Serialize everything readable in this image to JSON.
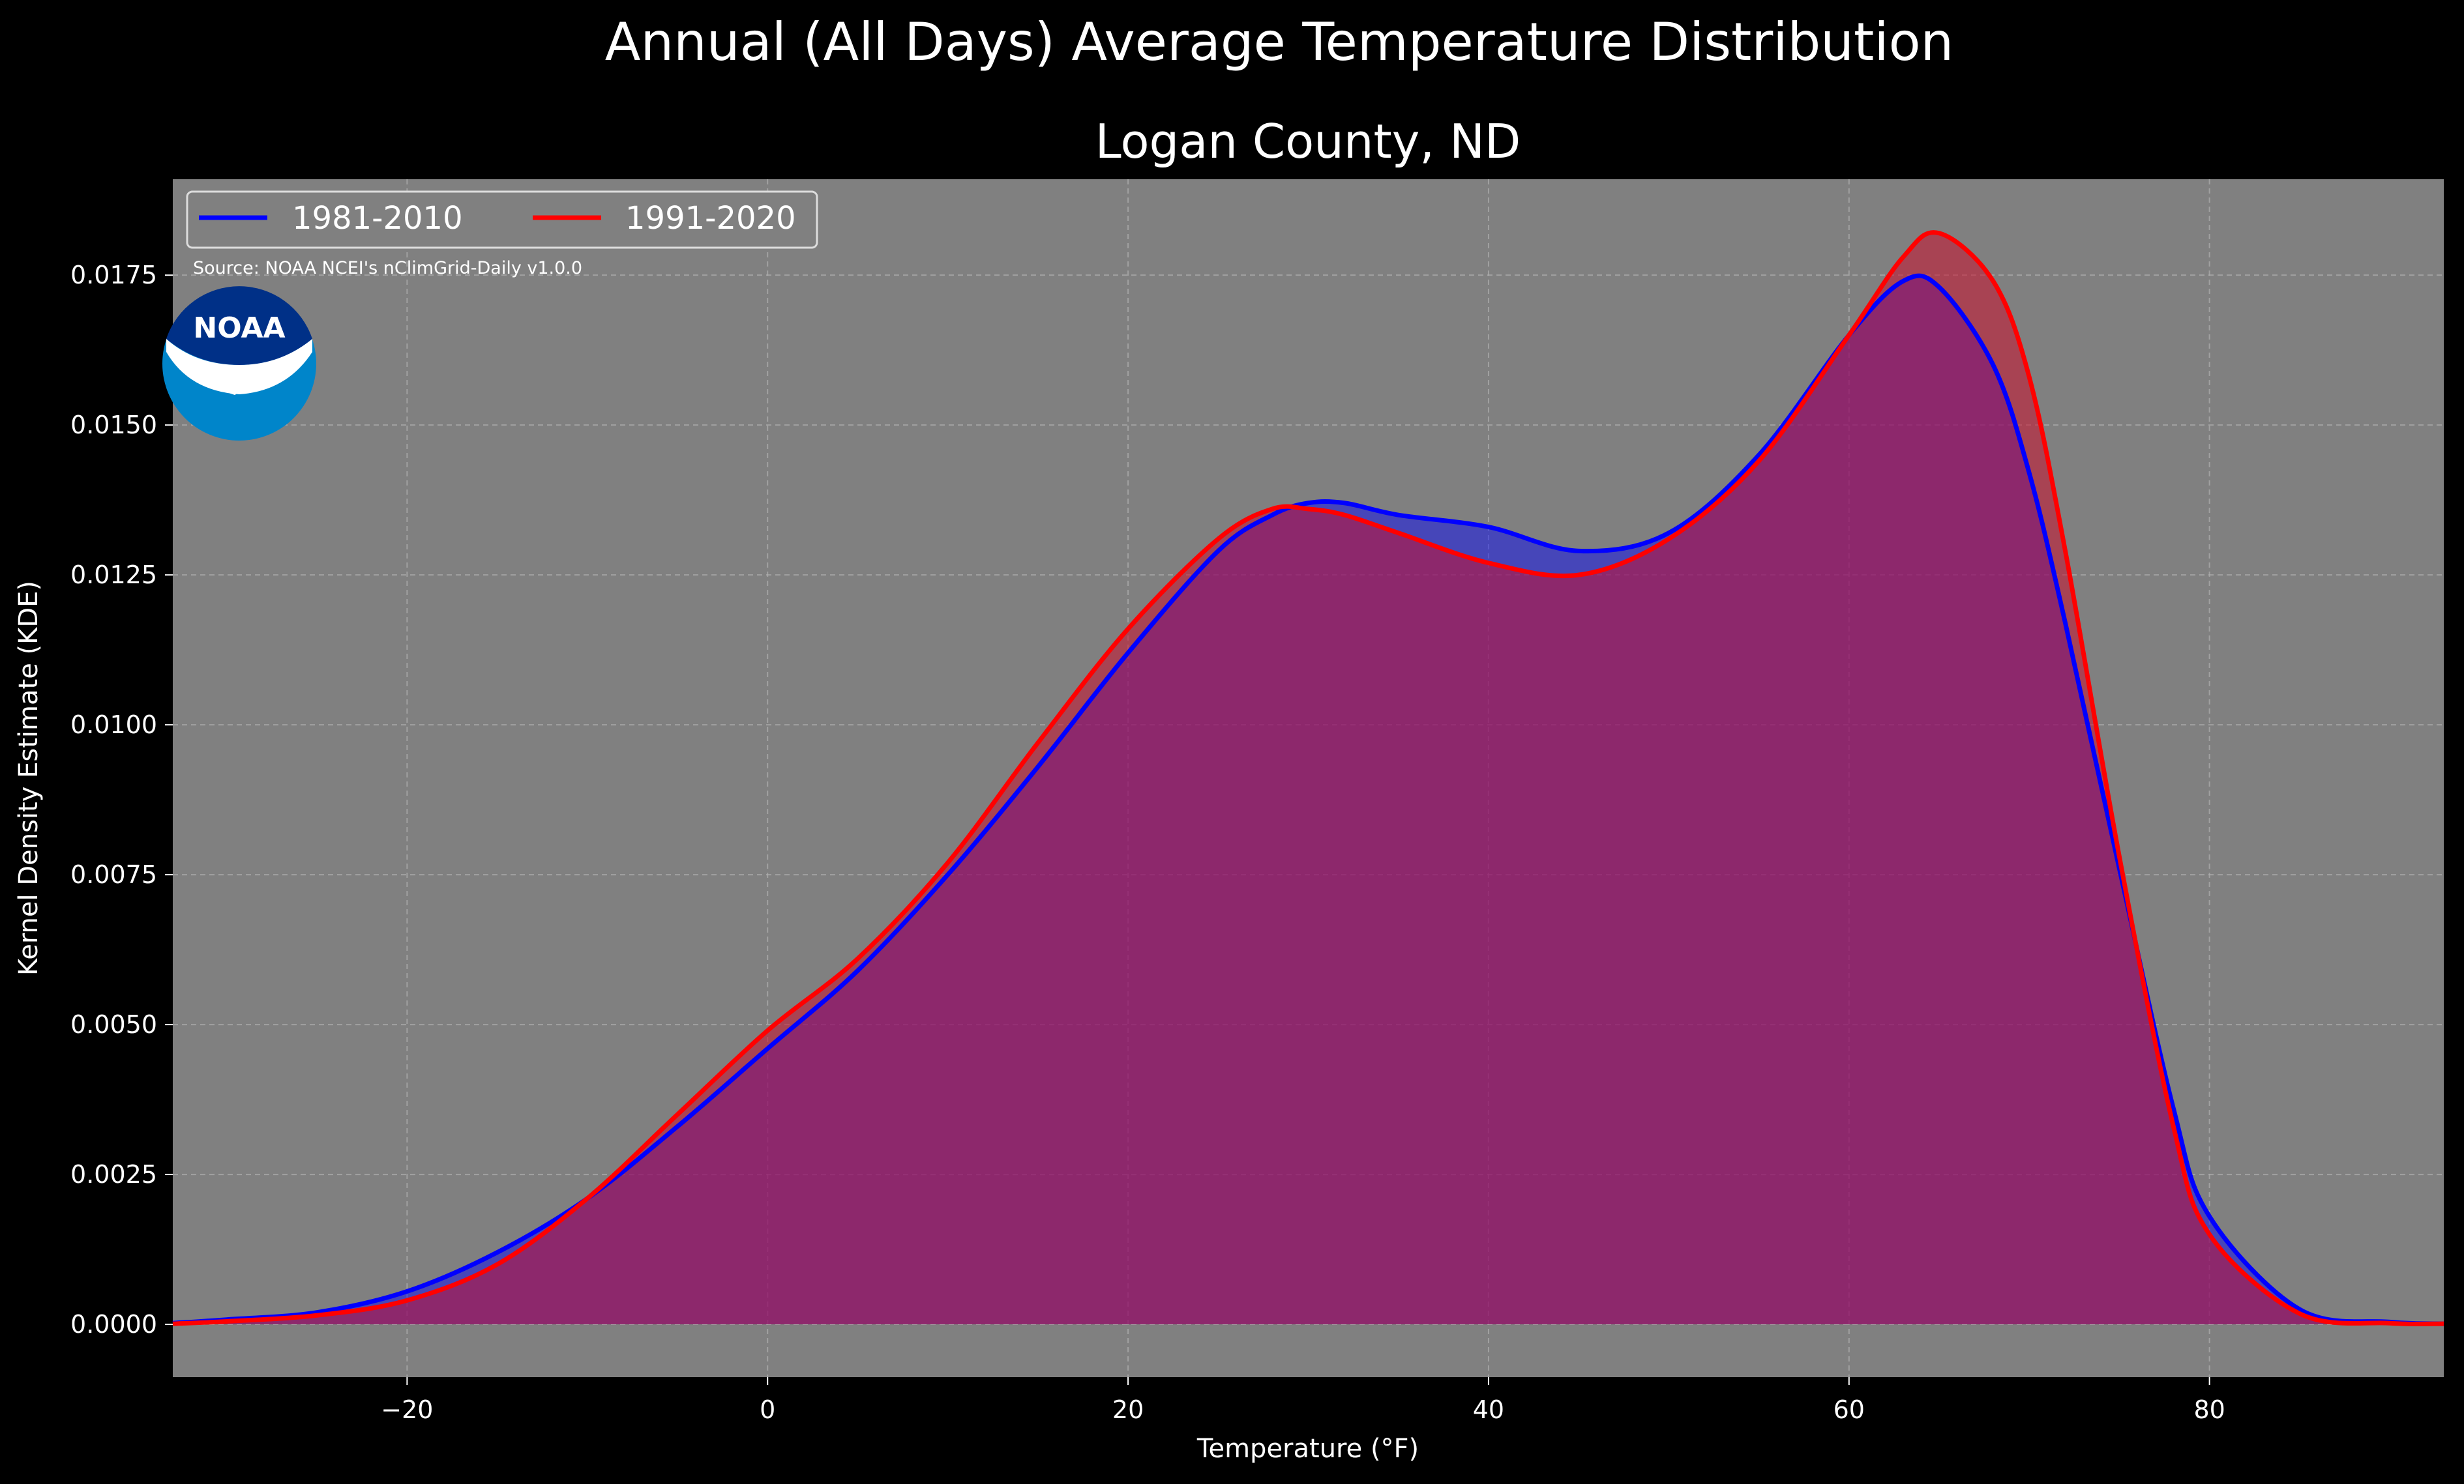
{
  "suptitle": "Annual (All Days) Average Temperature Distribution",
  "title": "Logan County, ND",
  "source_note": "Source: NOAA NCEI's nClimGrid-Daily v1.0.0",
  "logo": {
    "text": "NOAA",
    "colors": {
      "outer": "#0085CA",
      "inner": "#003087"
    }
  },
  "colors": {
    "background": "#000000",
    "plot_bg": "#808080",
    "grid": "#b0b0b0"
  },
  "chart_data": {
    "type": "area",
    "xlabel": "Temperature (°F)",
    "ylabel": "Kernel Density Estimate (KDE)",
    "xlim": [
      -33,
      93
    ],
    "ylim": [
      -0.00088,
      0.0191
    ],
    "xticks": [
      -20,
      0,
      20,
      40,
      60,
      80
    ],
    "xtick_labels": [
      "−20",
      "0",
      "20",
      "40",
      "60",
      "80"
    ],
    "yticks": [
      0,
      0.0025,
      0.005,
      0.0075,
      0.01,
      0.0125,
      0.015,
      0.0175
    ],
    "ytick_labels": [
      "0.0000",
      "0.0025",
      "0.0050",
      "0.0075",
      "0.0100",
      "0.0125",
      "0.0150",
      "0.0175"
    ],
    "grid": true,
    "legend_placement": "top-left",
    "series": [
      {
        "name": "1981-2010",
        "line_color": "#0000ff",
        "fill_color": "#0000ff",
        "fill_opacity": 0.45,
        "x": [
          -33,
          -30,
          -25,
          -20,
          -15,
          -10,
          -5,
          0,
          5,
          10,
          15,
          20,
          25,
          28,
          30,
          32,
          35,
          40,
          45,
          50,
          55,
          60,
          63,
          65,
          68,
          70,
          72,
          75,
          78,
          80,
          85,
          90,
          93
        ],
        "y": [
          2e-05,
          8e-05,
          0.0002,
          0.00055,
          0.0012,
          0.0021,
          0.0033,
          0.0046,
          0.0059,
          0.0075,
          0.0093,
          0.0112,
          0.0129,
          0.0135,
          0.0137,
          0.0137,
          0.0135,
          0.0133,
          0.0129,
          0.0132,
          0.0145,
          0.0165,
          0.0174,
          0.0173,
          0.016,
          0.0142,
          0.0117,
          0.0076,
          0.0036,
          0.0018,
          0.00025,
          4e-05,
          1e-05
        ]
      },
      {
        "name": "1991-2020",
        "line_color": "#ff0000",
        "fill_color": "#c8102e",
        "fill_opacity": 0.55,
        "x": [
          -33,
          -30,
          -25,
          -20,
          -15,
          -10,
          -5,
          0,
          5,
          10,
          15,
          20,
          25,
          28,
          30,
          32,
          35,
          40,
          45,
          50,
          55,
          60,
          63,
          65,
          68,
          70,
          72,
          75,
          78,
          80,
          85,
          90,
          93
        ],
        "y": [
          1e-05,
          5e-05,
          0.00015,
          0.0004,
          0.001,
          0.0021,
          0.0035,
          0.0049,
          0.0061,
          0.0077,
          0.0097,
          0.0116,
          0.0131,
          0.0136,
          0.0136,
          0.0135,
          0.0132,
          0.0127,
          0.0125,
          0.0131,
          0.0144,
          0.0165,
          0.0178,
          0.0182,
          0.0174,
          0.0158,
          0.0129,
          0.0078,
          0.0033,
          0.0015,
          0.00018,
          2e-05,
          1e-05
        ]
      }
    ]
  }
}
